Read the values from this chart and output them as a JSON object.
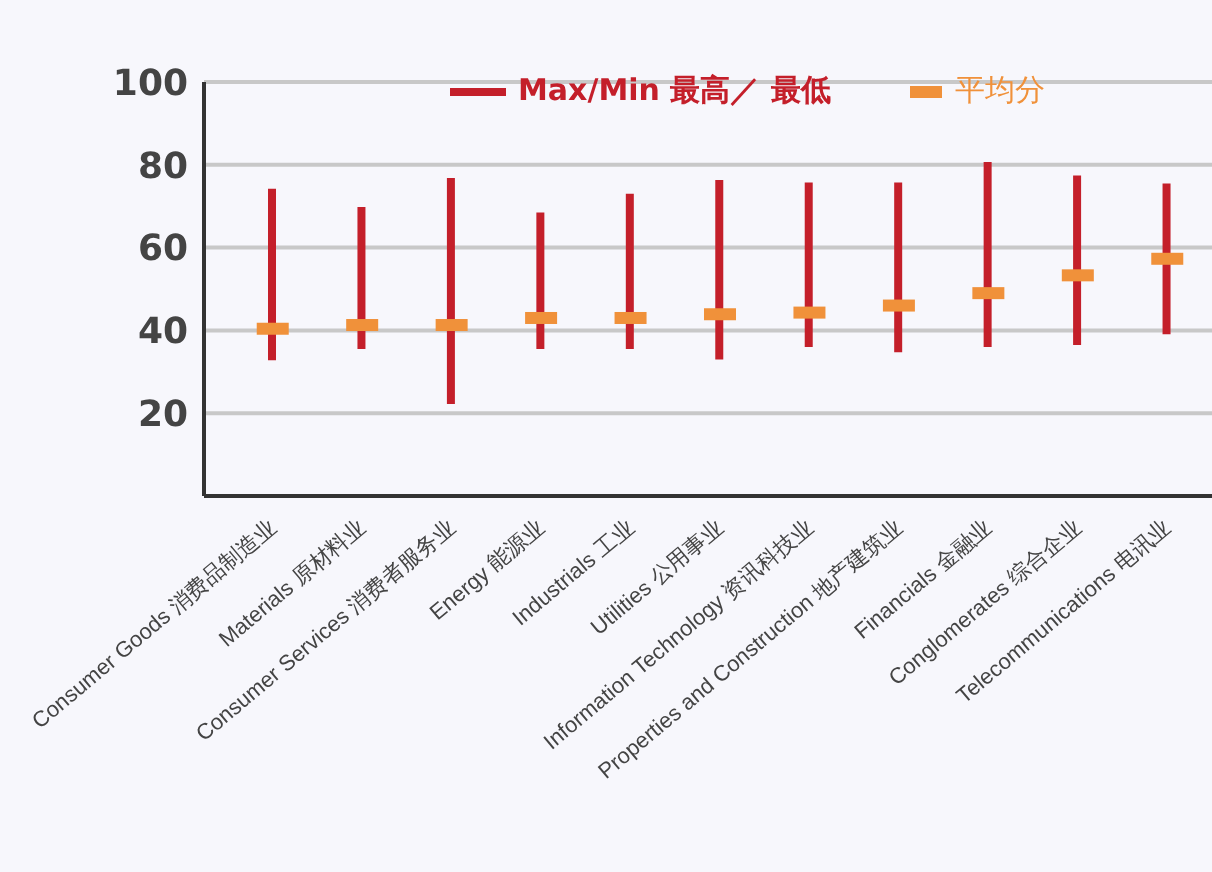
{
  "chart_data": {
    "type": "bar",
    "categories": [
      "Consumer Goods 消费品制造业",
      "Materials 原材料业",
      "Consumer Services 消费者服务业",
      "Energy 能源业",
      "Industrials 工业",
      "Utilities 公用事业",
      "Information Technology 资讯科技业",
      "Properties and Construction 地产建筑业",
      "Financials 金融业",
      "Conglomerates 综合企业",
      "Telecommunications 电讯业"
    ],
    "series": [
      {
        "name": "Max/Min 最高／ 最低",
        "color": "#c41f2a",
        "base": [
          32.8,
          35.5,
          22.2,
          35.5,
          35.5,
          33,
          36,
          34.7,
          36,
          36.5,
          39.1
        ],
        "values": [
          41.4,
          34.3,
          54.6,
          33,
          37.5,
          43.3,
          39.7,
          41,
          44.7,
          40.9,
          36.4
        ]
      },
      {
        "name": "平均分",
        "type": "scatter",
        "marker": "square",
        "color": "#f0913a",
        "values": [
          40.4,
          41.3,
          41.3,
          43,
          43,
          43.9,
          44.3,
          46,
          49,
          53.3,
          57.3
        ]
      }
    ],
    "ylim": [
      0,
      100
    ],
    "yticks": [
      20,
      40,
      60,
      80,
      100
    ],
    "grid": "y",
    "legend": "top"
  }
}
